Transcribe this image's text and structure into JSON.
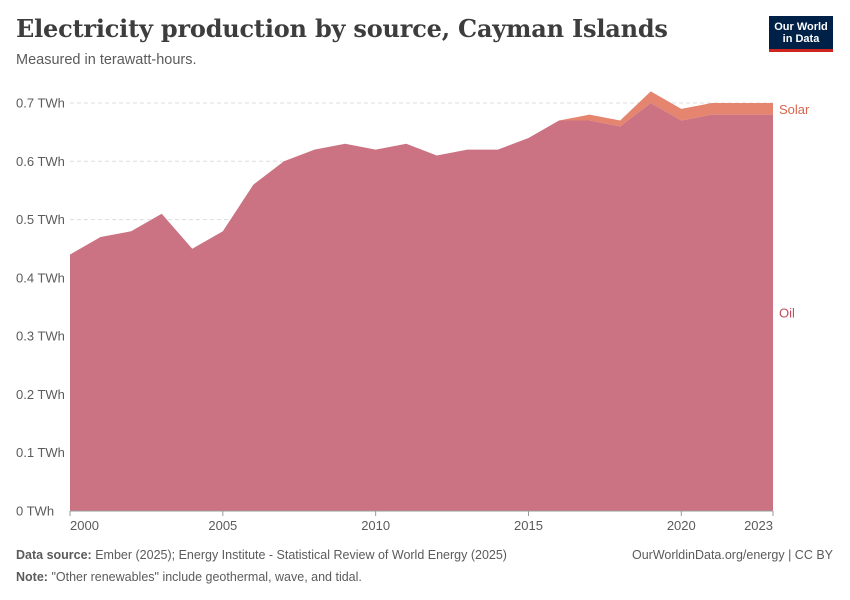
{
  "header": {
    "title": "Electricity production by source, Cayman Islands",
    "subtitle": "Measured in terawatt-hours.",
    "logo_line1": "Our World",
    "logo_line2": "in Data"
  },
  "footer": {
    "source_label": "Data source:",
    "source_text": "Ember (2025); Energy Institute - Statistical Review of World Energy (2025)",
    "note_label": "Note:",
    "note_text": "\"Other renewables\" include geothermal, wave, and tidal.",
    "attribution": "OurWorldinData.org/energy | CC BY"
  },
  "colors": {
    "oil": "#cc7383",
    "solar": "#e5846f",
    "oil_label": "#c14e5e",
    "solar_label": "#d9654d",
    "grid": "#dddddd",
    "axis_text": "#5b5b5b"
  },
  "chart_data": {
    "type": "area",
    "stacked": true,
    "title": "Electricity production by source, Cayman Islands",
    "subtitle": "Measured in terawatt-hours.",
    "y_unit": "TWh",
    "ylim": [
      0,
      0.7
    ],
    "xlim": [
      2000,
      2023
    ],
    "y_ticks": [
      0,
      0.1,
      0.2,
      0.3,
      0.4,
      0.5,
      0.6,
      0.7
    ],
    "y_tick_labels": [
      "0 TWh",
      "0.1 TWh",
      "0.2 TWh",
      "0.3 TWh",
      "0.4 TWh",
      "0.5 TWh",
      "0.6 TWh",
      "0.7 TWh"
    ],
    "x_ticks": [
      2000,
      2005,
      2010,
      2015,
      2020,
      2023
    ],
    "x_tick_labels": [
      "2000",
      "2005",
      "2010",
      "2015",
      "2020",
      "2023"
    ],
    "grid": true,
    "x": [
      2000,
      2001,
      2002,
      2003,
      2004,
      2005,
      2006,
      2007,
      2008,
      2009,
      2010,
      2011,
      2012,
      2013,
      2014,
      2015,
      2016,
      2017,
      2018,
      2019,
      2020,
      2021,
      2022,
      2023
    ],
    "series": [
      {
        "name": "Oil",
        "color": "#cc7383",
        "values": [
          0.44,
          0.47,
          0.48,
          0.51,
          0.45,
          0.48,
          0.56,
          0.6,
          0.62,
          0.63,
          0.62,
          0.63,
          0.61,
          0.62,
          0.62,
          0.64,
          0.67,
          0.67,
          0.66,
          0.7,
          0.67,
          0.68,
          0.68,
          0.68
        ]
      },
      {
        "name": "Solar",
        "color": "#e5846f",
        "values": [
          0,
          0,
          0,
          0,
          0,
          0,
          0,
          0,
          0,
          0,
          0,
          0,
          0,
          0,
          0,
          0,
          0,
          0.01,
          0.01,
          0.02,
          0.02,
          0.02,
          0.02,
          0.02
        ]
      }
    ]
  }
}
